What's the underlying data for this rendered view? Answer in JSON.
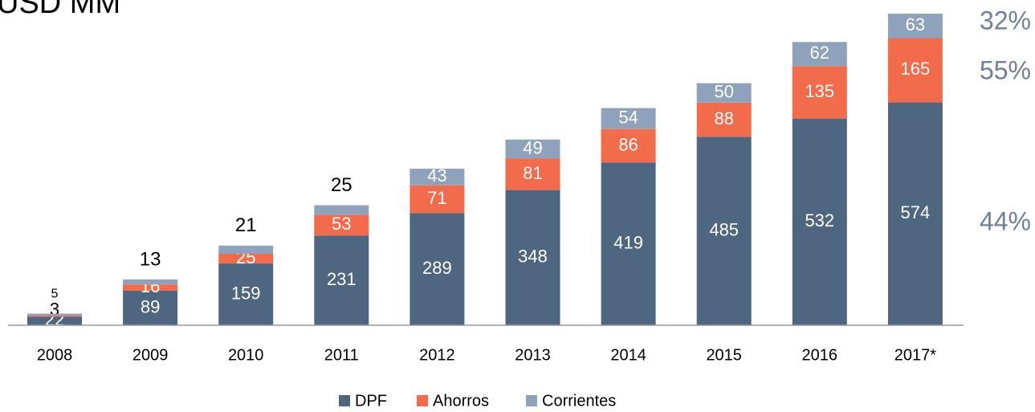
{
  "chart_data": {
    "type": "stacked_bar",
    "title": "USD MM",
    "categories": [
      "2008",
      "2009",
      "2010",
      "2011",
      "2012",
      "2013",
      "2014",
      "2015",
      "2016",
      "2017*"
    ],
    "series": [
      {
        "name": "DPF",
        "color": "#4f6680",
        "values": [
          22,
          89,
          159,
          231,
          289,
          348,
          419,
          485,
          532,
          574
        ]
      },
      {
        "name": "Ahorros",
        "color": "#f26b4b",
        "values": [
          3,
          16,
          25,
          53,
          71,
          81,
          86,
          88,
          135,
          165
        ]
      },
      {
        "name": "Corrientes",
        "color": "#8ea3bb",
        "values": [
          5,
          13,
          21,
          25,
          43,
          49,
          54,
          50,
          62,
          63
        ]
      }
    ],
    "ylim": [
      0,
      802
    ],
    "annotations": [
      "32%",
      "55%",
      "44%"
    ],
    "legend": "bottom"
  }
}
